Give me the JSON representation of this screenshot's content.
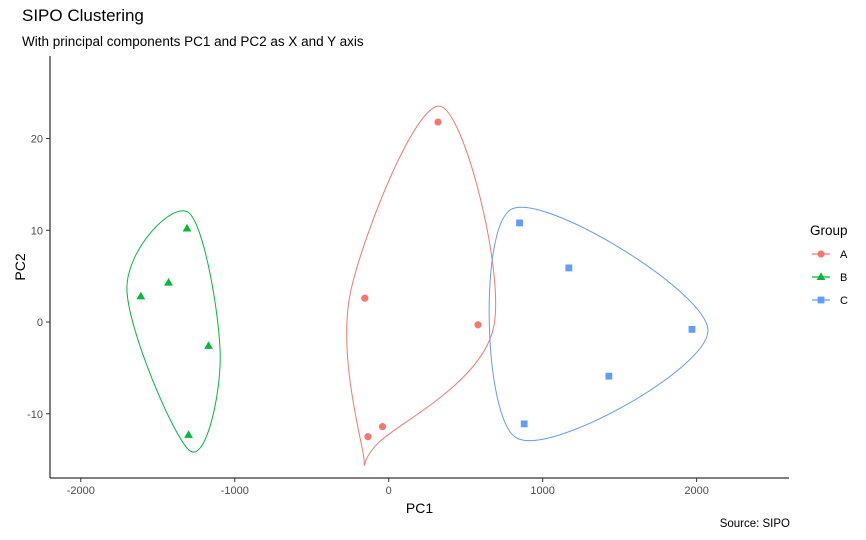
{
  "chart_data": {
    "type": "scatter",
    "title": "SIPO Clustering",
    "subtitle": "With principal components PC1 and PC2 as X and Y axis",
    "caption": "Source: SIPO",
    "xlabel": "PC1",
    "ylabel": "PC2",
    "xlim": [
      -2200,
      2600
    ],
    "ylim": [
      -17,
      29
    ],
    "x_ticks": [
      -2000,
      -1000,
      0,
      1000,
      2000
    ],
    "x_tick_labels": [
      "-2000",
      "-1000",
      "0",
      "1000",
      "2000"
    ],
    "y_ticks": [
      -10,
      0,
      10,
      20
    ],
    "y_tick_labels": [
      "-10",
      "0",
      "10",
      "20"
    ],
    "grid": false,
    "legend": {
      "title": "Group",
      "position": "right"
    },
    "series": [
      {
        "name": "A",
        "color": "#F8766D",
        "marker": "circle",
        "points": [
          {
            "x": 320,
            "y": 21.8
          },
          {
            "x": -155,
            "y": 2.6
          },
          {
            "x": 580,
            "y": -0.3
          },
          {
            "x": -40,
            "y": -11.4
          },
          {
            "x": -135,
            "y": -12.5
          }
        ]
      },
      {
        "name": "B",
        "color": "#00BA38",
        "marker": "triangle",
        "points": [
          {
            "x": -1310,
            "y": 10.2
          },
          {
            "x": -1430,
            "y": 4.3
          },
          {
            "x": -1610,
            "y": 2.8
          },
          {
            "x": -1170,
            "y": -2.6
          },
          {
            "x": -1300,
            "y": -12.3
          }
        ]
      },
      {
        "name": "C",
        "color": "#619CFF",
        "marker": "square",
        "points": [
          {
            "x": 850,
            "y": 10.8
          },
          {
            "x": 1170,
            "y": 5.9
          },
          {
            "x": 1970,
            "y": -0.8
          },
          {
            "x": 1430,
            "y": -5.9
          },
          {
            "x": 880,
            "y": -11.1
          }
        ]
      }
    ]
  }
}
